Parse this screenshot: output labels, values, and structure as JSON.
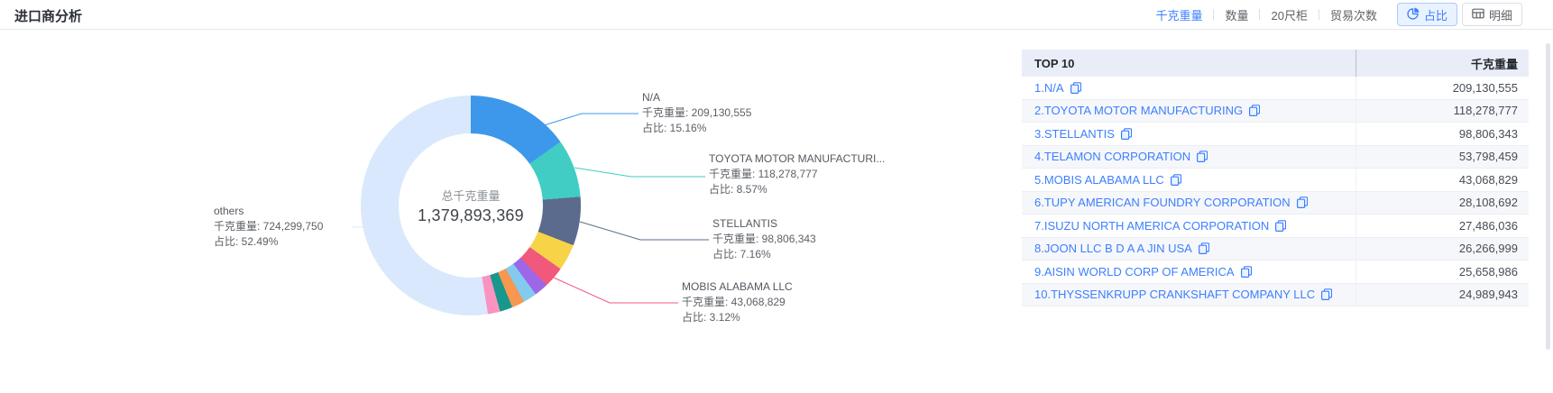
{
  "page": {
    "title": "进口商分析"
  },
  "colors": {
    "accent": "#3d7fff",
    "table_header_bg": "#e9edf8",
    "divider": "#e7e9ec"
  },
  "toolbar": {
    "metrics": [
      {
        "label": "千克重量",
        "active": true
      },
      {
        "label": "数量",
        "active": false
      },
      {
        "label": "20尺柜",
        "active": false
      },
      {
        "label": "贸易次数",
        "active": false
      }
    ],
    "view_buttons": [
      {
        "label": "占比",
        "icon": "pie-chart-icon",
        "active": true
      },
      {
        "label": "明细",
        "icon": "table-icon",
        "active": false
      }
    ]
  },
  "chart_data": {
    "type": "pie",
    "title": "进口商分析",
    "center_label": "总千克重量",
    "center_value": "1,379,893,369",
    "total": 1379893369,
    "metric_label": "千克重量",
    "share_label": "占比",
    "legend_position": "none",
    "segments": [
      {
        "name": "N/A",
        "value": 209130555,
        "value_text": "209,130,555",
        "pct": 15.16,
        "pct_text": "15.16%",
        "color": "#3d98ec",
        "labeled": true
      },
      {
        "name": "TOYOTA MOTOR MANUFACTURI...",
        "value": 118278777,
        "value_text": "118,278,777",
        "pct": 8.57,
        "pct_text": "8.57%",
        "color": "#41cdc3",
        "labeled": true
      },
      {
        "name": "STELLANTIS",
        "value": 98806343,
        "value_text": "98,806,343",
        "pct": 7.16,
        "pct_text": "7.16%",
        "color": "#5a6b8d",
        "labeled": true
      },
      {
        "name": "TELAMON CORPORATION",
        "value": 53798459,
        "value_text": "53,798,459",
        "pct": 3.9,
        "pct_text": "3.90%",
        "color": "#f7d347",
        "labeled": false
      },
      {
        "name": "MOBIS ALABAMA LLC",
        "value": 43068829,
        "value_text": "43,068,829",
        "pct": 3.12,
        "pct_text": "3.12%",
        "color": "#f0587c",
        "labeled": true
      },
      {
        "name": "TUPY AMERICAN FOUNDRY CORPORATION",
        "value": 28108692,
        "value_text": "28,108,692",
        "pct": 2.04,
        "pct_text": "2.04%",
        "color": "#9d67e8",
        "labeled": false
      },
      {
        "name": "ISUZU NORTH AMERICA CORPORATION",
        "value": 27486036,
        "value_text": "27,486,036",
        "pct": 1.99,
        "pct_text": "1.99%",
        "color": "#82cbee",
        "labeled": false
      },
      {
        "name": "JOON LLC B D A A JIN USA",
        "value": 26266999,
        "value_text": "26,266,999",
        "pct": 1.9,
        "pct_text": "1.90%",
        "color": "#f79750",
        "labeled": false
      },
      {
        "name": "AISIN WORLD CORP OF AMERICA",
        "value": 25658986,
        "value_text": "25,658,986",
        "pct": 1.86,
        "pct_text": "1.86%",
        "color": "#18978c",
        "labeled": false
      },
      {
        "name": "THYSSENKRUPP CRANKSHAFT COMPANY LLC",
        "value": 24989943,
        "value_text": "24,989,943",
        "pct": 1.81,
        "pct_text": "1.81%",
        "color": "#fa93bf",
        "labeled": false
      },
      {
        "name": "others",
        "value": 724299750,
        "value_text": "724,299,750",
        "pct": 52.49,
        "pct_text": "52.49%",
        "color": "#d9e8fc",
        "labeled": true
      }
    ]
  },
  "table": {
    "header": {
      "rank_col": "TOP 10",
      "value_col": "千克重量"
    },
    "rows": [
      {
        "rank": 1,
        "name": "N/A",
        "value": "209,130,555"
      },
      {
        "rank": 2,
        "name": "TOYOTA MOTOR MANUFACTURING",
        "value": "118,278,777"
      },
      {
        "rank": 3,
        "name": "STELLANTIS",
        "value": "98,806,343"
      },
      {
        "rank": 4,
        "name": "TELAMON CORPORATION",
        "value": "53,798,459"
      },
      {
        "rank": 5,
        "name": "MOBIS ALABAMA LLC",
        "value": "43,068,829"
      },
      {
        "rank": 6,
        "name": "TUPY AMERICAN FOUNDRY CORPORATION",
        "value": "28,108,692"
      },
      {
        "rank": 7,
        "name": "ISUZU NORTH AMERICA CORPORATION",
        "value": "27,486,036"
      },
      {
        "rank": 8,
        "name": "JOON LLC B D A A JIN USA",
        "value": "26,266,999"
      },
      {
        "rank": 9,
        "name": "AISIN WORLD CORP OF AMERICA",
        "value": "25,658,986"
      },
      {
        "rank": 10,
        "name": "THYSSENKRUPP CRANKSHAFT COMPANY LLC",
        "value": "24,989,943"
      }
    ]
  }
}
